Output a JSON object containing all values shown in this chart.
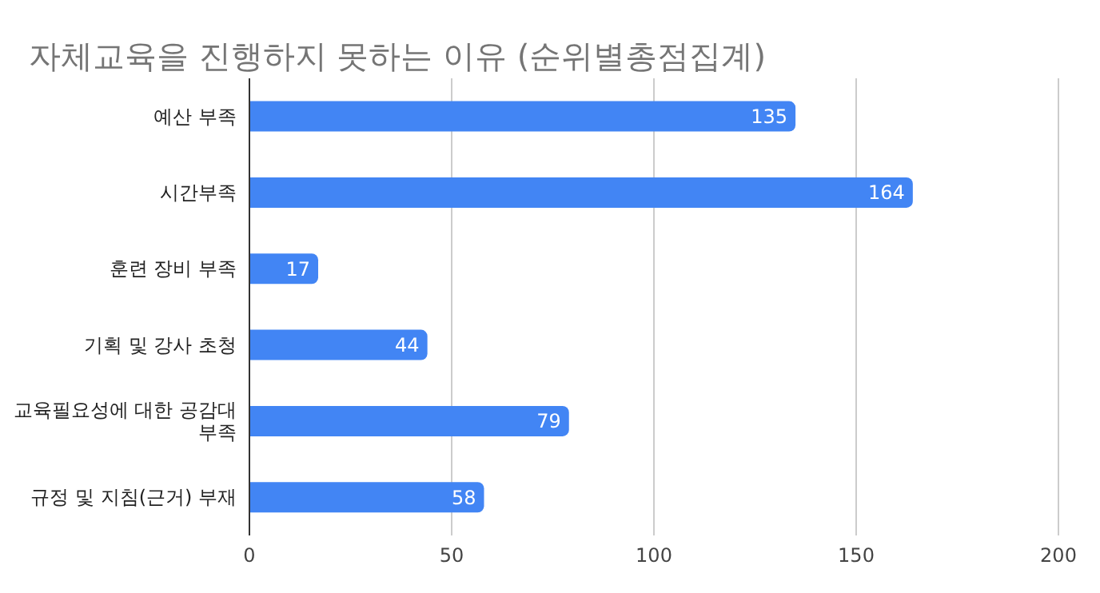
{
  "chart_data": {
    "type": "bar",
    "orientation": "horizontal",
    "title": "자체교육을 진행하지 못하는 이유 (순위별총점집계)",
    "categories": [
      "예산 부족",
      "시간부족",
      "훈련 장비 부족",
      "기획 및 강사 초청",
      "교육필요성에 대한 공감대 부족",
      "규정 및 지침(근거) 부재"
    ],
    "values": [
      135,
      164,
      17,
      44,
      79,
      58
    ],
    "color": "#4285f4",
    "xlim": [
      0,
      200
    ],
    "xticks": [
      0,
      50,
      100,
      150,
      200
    ],
    "grid": "x",
    "data_labels": true
  }
}
